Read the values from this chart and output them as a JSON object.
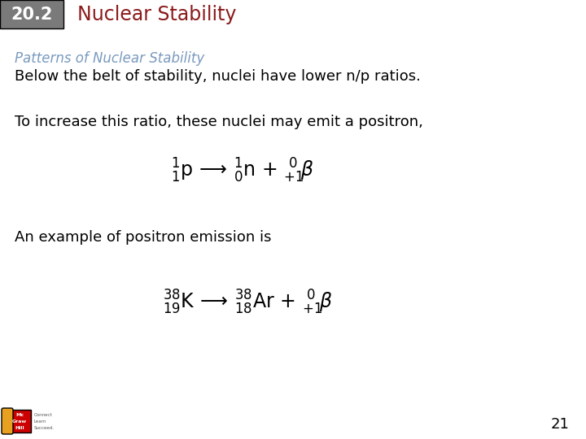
{
  "header_bg_color": "#7a7a7a",
  "header_number": "20.2",
  "header_number_color": "#ffffff",
  "header_title": "Nuclear Stability",
  "header_title_color": "#8b1a1a",
  "section_title": "Patterns of Nuclear Stability",
  "section_title_color": "#7a9abf",
  "line1": "Below the belt of stability, nuclei have lower n/p ratios.",
  "line2": "To increase this ratio, these nuclei may emit a positron,",
  "line3": "An example of positron emission is",
  "text_color": "#000000",
  "bg_color": "#ffffff",
  "page_number": "21",
  "arrow_color": "#000000"
}
